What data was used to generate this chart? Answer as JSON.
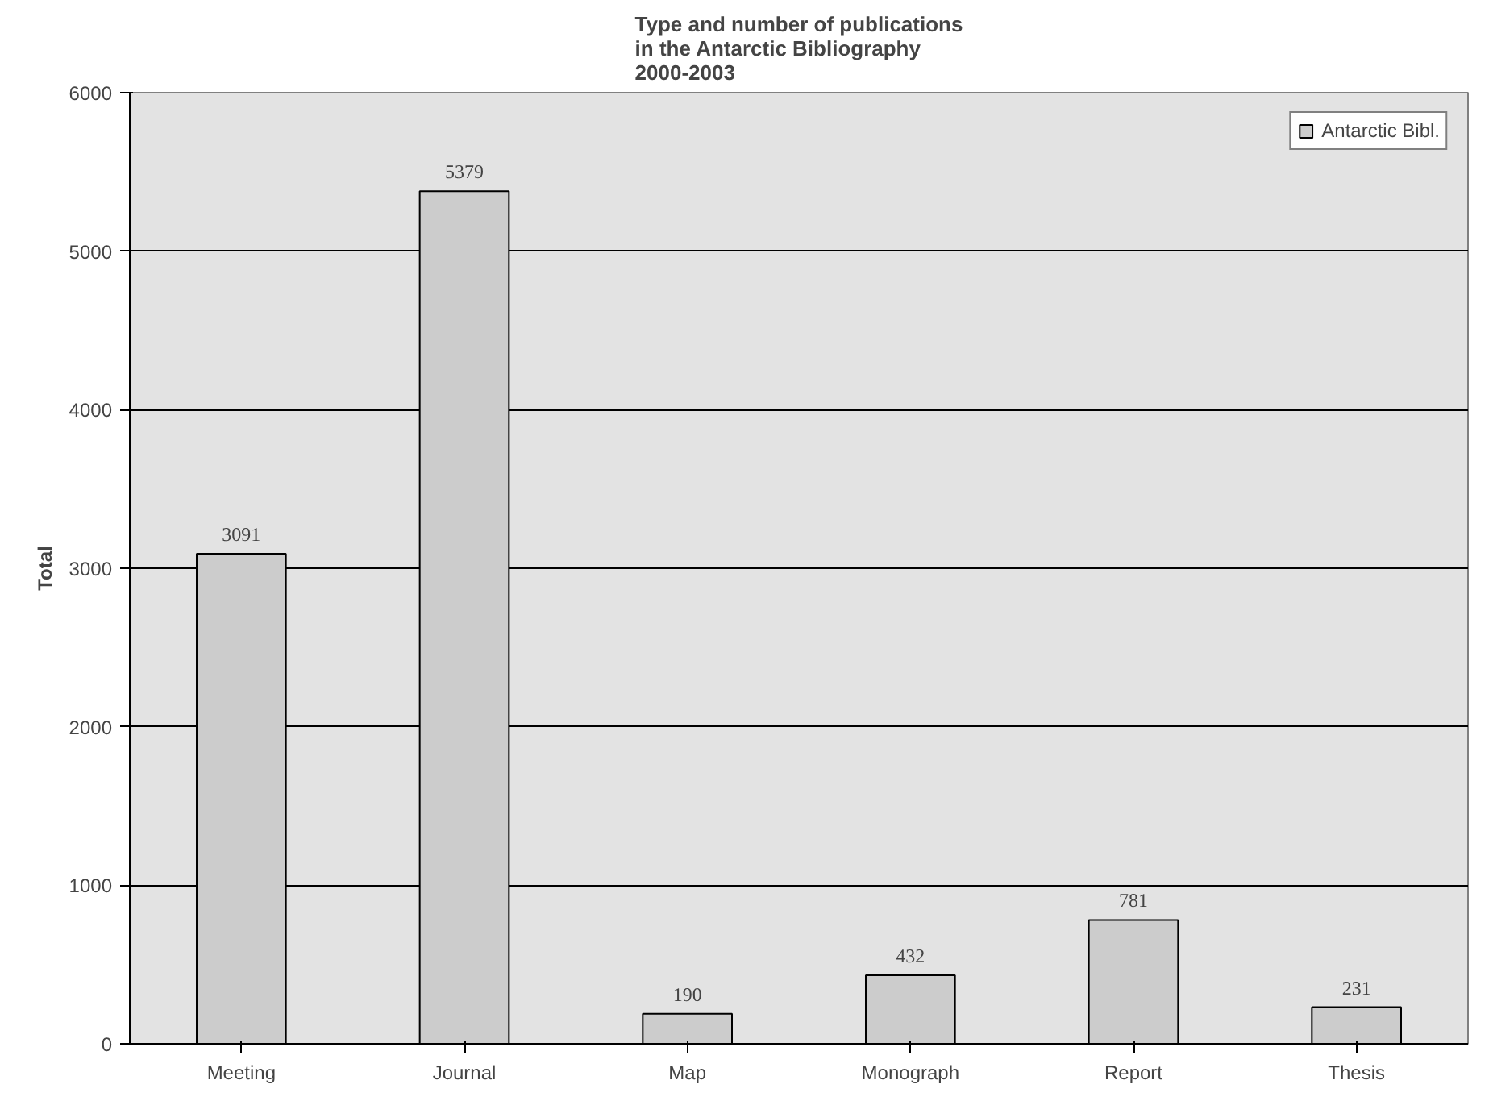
{
  "chart_data": {
    "type": "bar",
    "title": "Type and number of publications\nin the Antarctic Bibliography\n2000-2003",
    "ylabel": "Total",
    "categories": [
      "Meeting",
      "Journal",
      "Map",
      "Monograph",
      "Report",
      "Thesis"
    ],
    "series": [
      {
        "name": "Antarctic Bibl.",
        "color": "#cccccc",
        "values": [
          3091,
          5379,
          190,
          432,
          781,
          231
        ]
      }
    ],
    "data_labels": true,
    "ylim": [
      0,
      6000
    ],
    "yticks": [
      0,
      1000,
      2000,
      3000,
      4000,
      5000,
      6000
    ],
    "grid": "y",
    "legend": "top right"
  }
}
